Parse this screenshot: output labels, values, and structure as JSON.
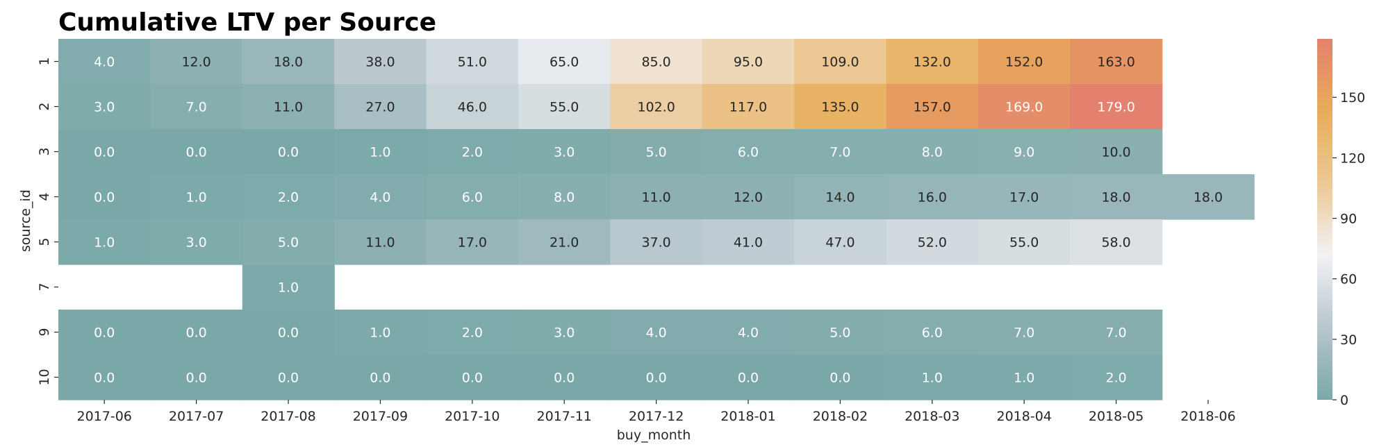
{
  "chart_data": {
    "type": "heatmap",
    "title": "Cumulative LTV per Source",
    "xlabel": "buy_month",
    "ylabel": "source_id",
    "x": [
      "2017-06",
      "2017-07",
      "2017-08",
      "2017-09",
      "2017-10",
      "2017-11",
      "2017-12",
      "2018-01",
      "2018-02",
      "2018-03",
      "2018-04",
      "2018-05",
      "2018-06"
    ],
    "y": [
      "1",
      "2",
      "3",
      "4",
      "5",
      "7",
      "9",
      "10"
    ],
    "values": [
      [
        4.0,
        12.0,
        18.0,
        38.0,
        51.0,
        65.0,
        85.0,
        95.0,
        109.0,
        132.0,
        152.0,
        163.0,
        null
      ],
      [
        3.0,
        7.0,
        11.0,
        27.0,
        46.0,
        55.0,
        102.0,
        117.0,
        135.0,
        157.0,
        169.0,
        179.0,
        null
      ],
      [
        0.0,
        0.0,
        0.0,
        1.0,
        2.0,
        3.0,
        5.0,
        6.0,
        7.0,
        8.0,
        9.0,
        10.0,
        null
      ],
      [
        0.0,
        1.0,
        2.0,
        4.0,
        6.0,
        8.0,
        11.0,
        12.0,
        14.0,
        16.0,
        17.0,
        18.0,
        18.0
      ],
      [
        1.0,
        3.0,
        5.0,
        11.0,
        17.0,
        21.0,
        37.0,
        41.0,
        47.0,
        52.0,
        55.0,
        58.0,
        null
      ],
      [
        null,
        null,
        1.0,
        null,
        null,
        null,
        null,
        null,
        null,
        null,
        null,
        null,
        null
      ],
      [
        0.0,
        0.0,
        0.0,
        1.0,
        2.0,
        3.0,
        4.0,
        4.0,
        5.0,
        6.0,
        7.0,
        7.0,
        null
      ],
      [
        0.0,
        0.0,
        0.0,
        0.0,
        0.0,
        0.0,
        0.0,
        0.0,
        0.0,
        1.0,
        1.0,
        2.0,
        null
      ]
    ],
    "value_format": "1 decimal",
    "colorbar": {
      "vmin": 0,
      "vmax": 179,
      "ticks": [
        0,
        30,
        60,
        90,
        120,
        150
      ],
      "colors": [
        "#7aa8a8",
        "#b7c6cd",
        "#f2f2f5",
        "#ecc896",
        "#e8ad58",
        "#e4806e"
      ]
    },
    "grid": false,
    "legend": "colorbar right"
  }
}
